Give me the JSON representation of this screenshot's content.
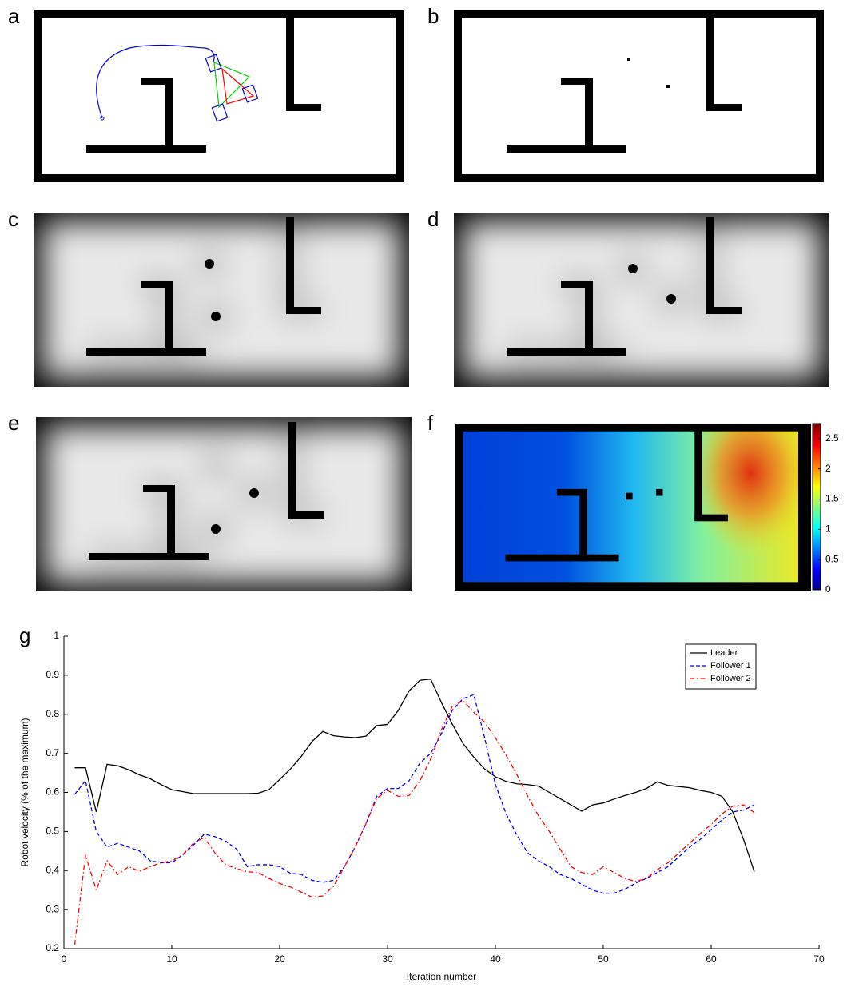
{
  "panel_labels": [
    "a",
    "b",
    "c",
    "d",
    "e"
  ],
  "chart_data": [
    {
      "type": "colorbar",
      "label": "f",
      "ylim": [
        0,
        2.75
      ],
      "yticks": [
        0,
        0.5,
        1,
        1.5,
        2,
        2.5
      ]
    },
    {
      "type": "line",
      "label": "g",
      "x_label": "Iteration number",
      "y_label": "Robot velocity (% of the maximum)",
      "xlim": [
        0,
        70
      ],
      "xticks": [
        0,
        10,
        20,
        30,
        40,
        50,
        60,
        70
      ],
      "ylim": [
        0.2,
        1
      ],
      "yticks": [
        0.2,
        0.3,
        0.4,
        0.5,
        0.6,
        0.7,
        0.8,
        0.9,
        1
      ],
      "legend": "top-right",
      "x": [
        1,
        2,
        3,
        4,
        5,
        6,
        7,
        8,
        9,
        10,
        11,
        12,
        13,
        14,
        15,
        16,
        17,
        18,
        19,
        20,
        21,
        22,
        23,
        24,
        25,
        26,
        27,
        28,
        29,
        30,
        31,
        32,
        33,
        34,
        35,
        36,
        37,
        38,
        39,
        40,
        41,
        42,
        43,
        44,
        45,
        46,
        47,
        48,
        49,
        50,
        51,
        52,
        53,
        54,
        55,
        56,
        57,
        58,
        59,
        60,
        61,
        62,
        63,
        64
      ],
      "series": [
        {
          "name": "Leader",
          "color": "#000000",
          "style": "solid",
          "values": [
            0.663,
            0.663,
            0.55,
            0.672,
            0.668,
            0.658,
            0.645,
            0.635,
            0.62,
            0.607,
            0.602,
            0.597,
            0.597,
            0.597,
            0.597,
            0.597,
            0.597,
            0.598,
            0.607,
            0.633,
            0.66,
            0.692,
            0.73,
            0.756,
            0.745,
            0.742,
            0.74,
            0.744,
            0.771,
            0.774,
            0.81,
            0.86,
            0.887,
            0.89,
            0.83,
            0.775,
            0.725,
            0.69,
            0.66,
            0.64,
            0.628,
            0.622,
            0.62,
            0.616,
            0.6,
            0.584,
            0.568,
            0.552,
            0.568,
            0.573,
            0.583,
            0.592,
            0.6,
            0.61,
            0.627,
            0.618,
            0.615,
            0.612,
            0.605,
            0.6,
            0.59,
            0.55,
            0.48,
            0.397
          ]
        },
        {
          "name": "Follower 1",
          "color": "#0000ff",
          "style": "dashed",
          "values": [
            0.595,
            0.63,
            0.5,
            0.46,
            0.47,
            0.46,
            0.45,
            0.425,
            0.42,
            0.42,
            0.44,
            0.465,
            0.493,
            0.487,
            0.475,
            0.455,
            0.41,
            0.415,
            0.415,
            0.41,
            0.393,
            0.39,
            0.375,
            0.37,
            0.375,
            0.41,
            0.46,
            0.52,
            0.59,
            0.61,
            0.61,
            0.63,
            0.675,
            0.7,
            0.75,
            0.81,
            0.84,
            0.85,
            0.74,
            0.62,
            0.545,
            0.49,
            0.445,
            0.425,
            0.41,
            0.39,
            0.38,
            0.365,
            0.35,
            0.342,
            0.342,
            0.352,
            0.368,
            0.38,
            0.395,
            0.41,
            0.435,
            0.46,
            0.48,
            0.505,
            0.53,
            0.55,
            0.555,
            0.568
          ]
        },
        {
          "name": "Follower 2",
          "color": "#ff0000",
          "style": "dashdot",
          "values": [
            0.21,
            0.44,
            0.35,
            0.425,
            0.39,
            0.41,
            0.398,
            0.41,
            0.42,
            0.425,
            0.44,
            0.47,
            0.485,
            0.445,
            0.415,
            0.405,
            0.397,
            0.395,
            0.38,
            0.367,
            0.358,
            0.345,
            0.332,
            0.335,
            0.36,
            0.41,
            0.46,
            0.52,
            0.585,
            0.605,
            0.59,
            0.592,
            0.63,
            0.685,
            0.76,
            0.82,
            0.835,
            0.805,
            0.78,
            0.74,
            0.695,
            0.645,
            0.59,
            0.54,
            0.5,
            0.455,
            0.41,
            0.395,
            0.39,
            0.41,
            0.395,
            0.38,
            0.372,
            0.38,
            0.402,
            0.42,
            0.445,
            0.47,
            0.495,
            0.518,
            0.545,
            0.565,
            0.568,
            0.548
          ]
        }
      ]
    }
  ]
}
